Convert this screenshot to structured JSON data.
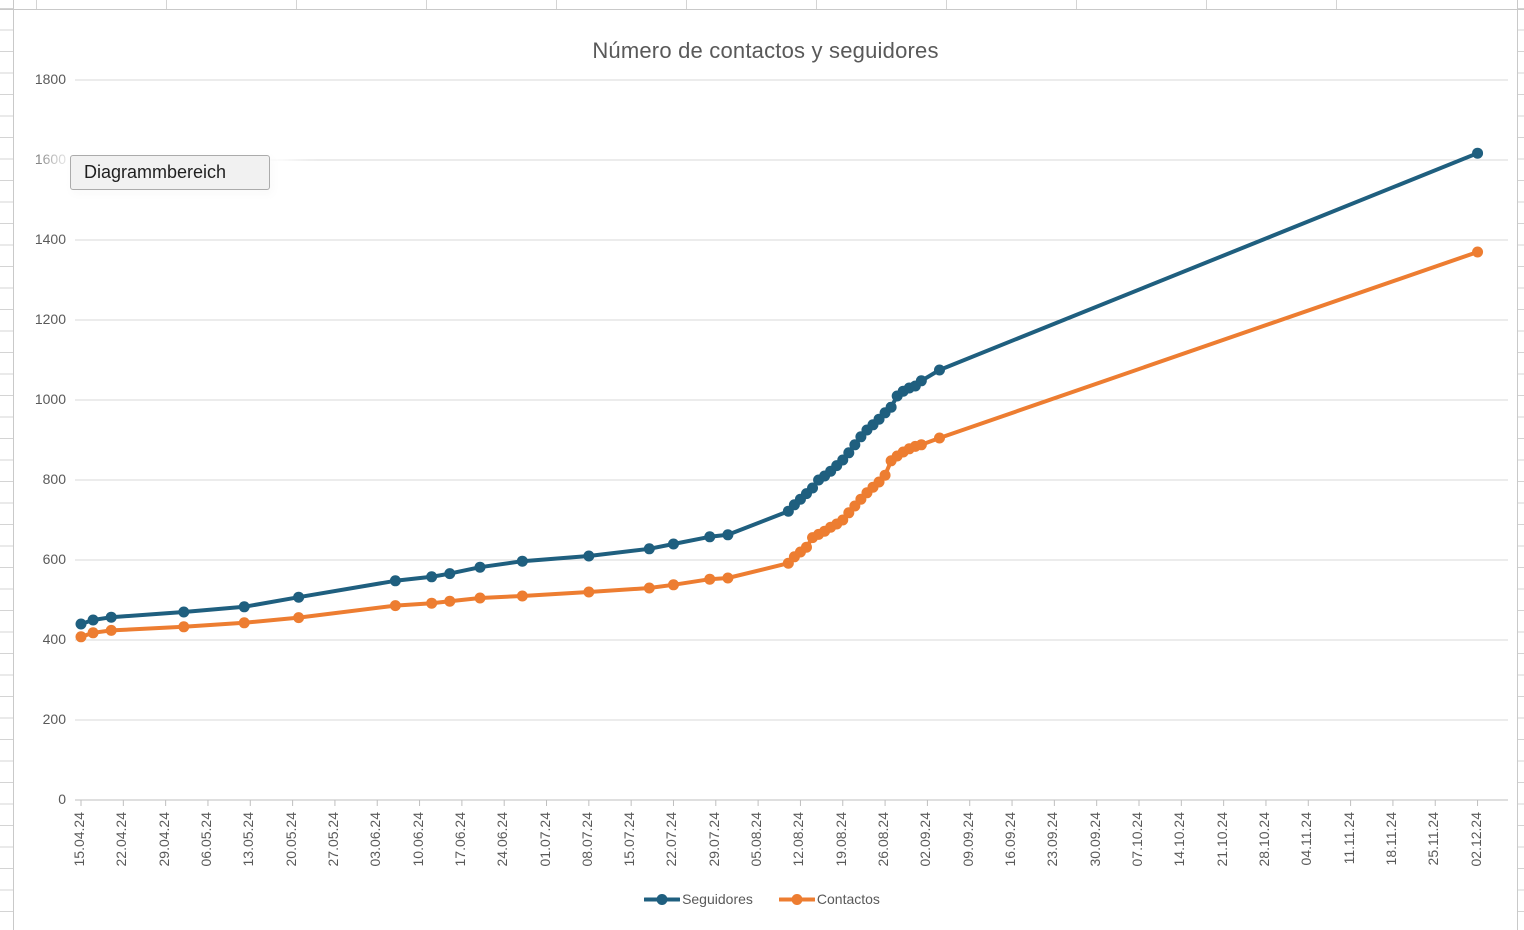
{
  "app": {
    "tooltip": "Diagrammbereich"
  },
  "legend": {
    "items": [
      "Seguidores",
      "Contactos"
    ]
  },
  "chart_data": {
    "type": "line",
    "title": "Número de contactos y seguidores",
    "xlabel": "",
    "ylabel": "",
    "ylim": [
      0,
      1800
    ],
    "y_ticks": [
      0,
      200,
      400,
      600,
      800,
      1000,
      1200,
      1400,
      1600,
      1800
    ],
    "grid": true,
    "legend_position": "bottom",
    "x_tick_labels": [
      "15.04.24",
      "22.04.24",
      "29.04.24",
      "06.05.24",
      "13.05.24",
      "20.05.24",
      "27.05.24",
      "03.06.24",
      "10.06.24",
      "17.06.24",
      "24.06.24",
      "01.07.24",
      "08.07.24",
      "15.07.24",
      "22.07.24",
      "29.07.24",
      "05.08.24",
      "12.08.24",
      "19.08.24",
      "26.08.24",
      "02.09.24",
      "09.09.24",
      "16.09.24",
      "23.09.24",
      "30.09.24",
      "07.10.24",
      "14.10.24",
      "21.10.24",
      "28.10.24",
      "04.11.24",
      "11.11.24",
      "18.11.24",
      "25.11.24",
      "02.12.24"
    ],
    "colors": {
      "seguidores": "#1F5F7F",
      "contactos": "#ED7D31",
      "gridline": "#D9D9D9",
      "axis_line": "#BFBFBF",
      "text": "#595959"
    },
    "series": [
      {
        "name": "Seguidores",
        "color": "#1F5F7F",
        "points": [
          {
            "date": "15.04.24",
            "day": 0,
            "value": 440
          },
          {
            "date": "17.04.24",
            "day": 2,
            "value": 450
          },
          {
            "date": "20.04.24",
            "day": 5,
            "value": 457
          },
          {
            "date": "02.05.24",
            "day": 17,
            "value": 470
          },
          {
            "date": "12.05.24",
            "day": 27,
            "value": 483
          },
          {
            "date": "21.05.24",
            "day": 36,
            "value": 507
          },
          {
            "date": "06.06.24",
            "day": 52,
            "value": 548
          },
          {
            "date": "12.06.24",
            "day": 58,
            "value": 558
          },
          {
            "date": "15.06.24",
            "day": 61,
            "value": 566
          },
          {
            "date": "20.06.24",
            "day": 66,
            "value": 582
          },
          {
            "date": "27.06.24",
            "day": 73,
            "value": 597
          },
          {
            "date": "08.07.24",
            "day": 84,
            "value": 610
          },
          {
            "date": "18.07.24",
            "day": 94,
            "value": 628
          },
          {
            "date": "22.07.24",
            "day": 98,
            "value": 640
          },
          {
            "date": "28.07.24",
            "day": 104,
            "value": 658
          },
          {
            "date": "31.07.24",
            "day": 107,
            "value": 663
          },
          {
            "date": "10.08.24",
            "day": 117,
            "value": 722
          },
          {
            "date": "11.08.24",
            "day": 118,
            "value": 738
          },
          {
            "date": "12.08.24",
            "day": 119,
            "value": 752
          },
          {
            "date": "13.08.24",
            "day": 120,
            "value": 766
          },
          {
            "date": "14.08.24",
            "day": 121,
            "value": 780
          },
          {
            "date": "15.08.24",
            "day": 122,
            "value": 800
          },
          {
            "date": "16.08.24",
            "day": 123,
            "value": 810
          },
          {
            "date": "17.08.24",
            "day": 124,
            "value": 822
          },
          {
            "date": "18.08.24",
            "day": 125,
            "value": 836
          },
          {
            "date": "19.08.24",
            "day": 126,
            "value": 850
          },
          {
            "date": "20.08.24",
            "day": 127,
            "value": 868
          },
          {
            "date": "21.08.24",
            "day": 128,
            "value": 888
          },
          {
            "date": "22.08.24",
            "day": 129,
            "value": 908
          },
          {
            "date": "23.08.24",
            "day": 130,
            "value": 925
          },
          {
            "date": "24.08.24",
            "day": 131,
            "value": 938
          },
          {
            "date": "25.08.24",
            "day": 132,
            "value": 952
          },
          {
            "date": "26.08.24",
            "day": 133,
            "value": 968
          },
          {
            "date": "27.08.24",
            "day": 134,
            "value": 982
          },
          {
            "date": "28.08.24",
            "day": 135,
            "value": 1010
          },
          {
            "date": "29.08.24",
            "day": 136,
            "value": 1022
          },
          {
            "date": "30.08.24",
            "day": 137,
            "value": 1030
          },
          {
            "date": "31.08.24",
            "day": 138,
            "value": 1035
          },
          {
            "date": "01.09.24",
            "day": 139,
            "value": 1048
          },
          {
            "date": "04.09.24",
            "day": 142,
            "value": 1075
          },
          {
            "date": "02.12.24",
            "day": 231,
            "value": 1617
          }
        ]
      },
      {
        "name": "Contactos",
        "color": "#ED7D31",
        "points": [
          {
            "date": "15.04.24",
            "day": 0,
            "value": 408
          },
          {
            "date": "17.04.24",
            "day": 2,
            "value": 418
          },
          {
            "date": "20.04.24",
            "day": 5,
            "value": 424
          },
          {
            "date": "02.05.24",
            "day": 17,
            "value": 433
          },
          {
            "date": "12.05.24",
            "day": 27,
            "value": 443
          },
          {
            "date": "21.05.24",
            "day": 36,
            "value": 456
          },
          {
            "date": "06.06.24",
            "day": 52,
            "value": 486
          },
          {
            "date": "12.06.24",
            "day": 58,
            "value": 492
          },
          {
            "date": "15.06.24",
            "day": 61,
            "value": 497
          },
          {
            "date": "20.06.24",
            "day": 66,
            "value": 505
          },
          {
            "date": "27.06.24",
            "day": 73,
            "value": 510
          },
          {
            "date": "08.07.24",
            "day": 84,
            "value": 520
          },
          {
            "date": "18.07.24",
            "day": 94,
            "value": 530
          },
          {
            "date": "22.07.24",
            "day": 98,
            "value": 538
          },
          {
            "date": "28.07.24",
            "day": 104,
            "value": 552
          },
          {
            "date": "31.07.24",
            "day": 107,
            "value": 555
          },
          {
            "date": "10.08.24",
            "day": 117,
            "value": 592
          },
          {
            "date": "11.08.24",
            "day": 118,
            "value": 608
          },
          {
            "date": "12.08.24",
            "day": 119,
            "value": 620
          },
          {
            "date": "13.08.24",
            "day": 120,
            "value": 632
          },
          {
            "date": "14.08.24",
            "day": 121,
            "value": 656
          },
          {
            "date": "15.08.24",
            "day": 122,
            "value": 664
          },
          {
            "date": "16.08.24",
            "day": 123,
            "value": 672
          },
          {
            "date": "17.08.24",
            "day": 124,
            "value": 682
          },
          {
            "date": "18.08.24",
            "day": 125,
            "value": 690
          },
          {
            "date": "19.08.24",
            "day": 126,
            "value": 700
          },
          {
            "date": "20.08.24",
            "day": 127,
            "value": 718
          },
          {
            "date": "21.08.24",
            "day": 128,
            "value": 735
          },
          {
            "date": "22.08.24",
            "day": 129,
            "value": 752
          },
          {
            "date": "23.08.24",
            "day": 130,
            "value": 768
          },
          {
            "date": "24.08.24",
            "day": 131,
            "value": 782
          },
          {
            "date": "25.08.24",
            "day": 132,
            "value": 795
          },
          {
            "date": "26.08.24",
            "day": 133,
            "value": 812
          },
          {
            "date": "27.08.24",
            "day": 134,
            "value": 848
          },
          {
            "date": "28.08.24",
            "day": 135,
            "value": 860
          },
          {
            "date": "29.08.24",
            "day": 136,
            "value": 870
          },
          {
            "date": "30.08.24",
            "day": 137,
            "value": 878
          },
          {
            "date": "31.08.24",
            "day": 138,
            "value": 884
          },
          {
            "date": "01.09.24",
            "day": 139,
            "value": 888
          },
          {
            "date": "04.09.24",
            "day": 142,
            "value": 905
          },
          {
            "date": "02.12.24",
            "day": 231,
            "value": 1370
          }
        ]
      }
    ]
  }
}
